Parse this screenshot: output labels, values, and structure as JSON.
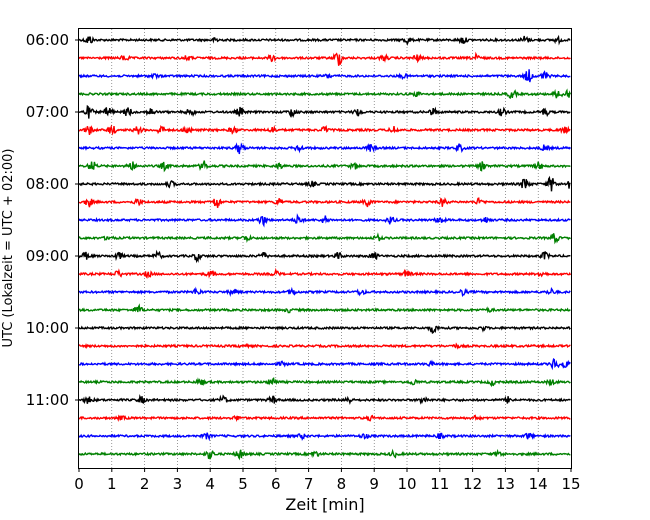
{
  "chart_data": {
    "type": "line",
    "subtype": "helicorder",
    "xlabel": "Zeit  [min]",
    "ylabel": "UTC (Lokalzeit = UTC + 02:00)",
    "xlim": [
      0,
      15
    ],
    "x_ticks": [
      0,
      1,
      2,
      3,
      4,
      5,
      6,
      7,
      8,
      9,
      10,
      11,
      12,
      13,
      14,
      15
    ],
    "x_tick_labels": [
      "0",
      "1",
      "2",
      "3",
      "4",
      "5",
      "6",
      "7",
      "8",
      "9",
      "10",
      "11",
      "12",
      "13",
      "14",
      "15"
    ],
    "y_tick_labels": [
      "06:00",
      "07:00",
      "08:00",
      "09:00",
      "10:00",
      "11:00"
    ],
    "trace_colors": [
      "#000000",
      "#ff0000",
      "#0000ff",
      "#008000"
    ],
    "traces_count": 24,
    "vertical_grid": true,
    "series": [
      {
        "bursts": [
          [
            0.3,
            1.0
          ],
          [
            4.2,
            0.5
          ],
          [
            10.0,
            0.8
          ],
          [
            11.7,
            0.8
          ],
          [
            13.6,
            0.9
          ],
          [
            14.6,
            0.5
          ]
        ]
      },
      {
        "bursts": [
          [
            1.4,
            0.6
          ],
          [
            3.3,
            0.5
          ],
          [
            5.9,
            0.7
          ],
          [
            7.9,
            1.8
          ],
          [
            9.3,
            0.6
          ],
          [
            10.3,
            0.7
          ],
          [
            12.1,
            0.7
          ]
        ]
      },
      {
        "bursts": [
          [
            2.3,
            0.4
          ],
          [
            7.6,
            0.4
          ],
          [
            9.9,
            0.4
          ],
          [
            13.7,
            1.4
          ],
          [
            14.2,
            0.9
          ]
        ]
      },
      {
        "bursts": [
          [
            10.3,
            0.4
          ],
          [
            13.2,
            1.0
          ],
          [
            14.6,
            0.9
          ],
          [
            14.9,
            0.9
          ]
        ]
      },
      {
        "bursts": [
          [
            0.3,
            1.3
          ],
          [
            0.9,
            1.2
          ],
          [
            1.5,
            1.0
          ],
          [
            2.2,
            0.8
          ],
          [
            3.4,
            0.8
          ],
          [
            4.9,
            0.9
          ],
          [
            6.5,
            0.9
          ],
          [
            8.5,
            0.8
          ],
          [
            10.8,
            0.8
          ],
          [
            12.9,
            0.8
          ],
          [
            14.2,
            0.8
          ]
        ]
      },
      {
        "bursts": [
          [
            0.3,
            1.0
          ],
          [
            1.0,
            1.0
          ],
          [
            1.8,
            0.8
          ],
          [
            2.5,
            0.9
          ],
          [
            3.3,
            0.8
          ],
          [
            4.7,
            0.7
          ],
          [
            5.9,
            0.6
          ],
          [
            7.5,
            0.7
          ],
          [
            9.6,
            0.8
          ],
          [
            14.8,
            0.6
          ]
        ]
      },
      {
        "bursts": [
          [
            4.9,
            1.2
          ],
          [
            6.7,
            0.7
          ],
          [
            8.9,
            0.8
          ],
          [
            11.6,
            0.8
          ],
          [
            14.2,
            0.6
          ]
        ]
      },
      {
        "bursts": [
          [
            0.4,
            1.1
          ],
          [
            1.6,
            1.0
          ],
          [
            2.6,
            0.8
          ],
          [
            3.8,
            1.1
          ],
          [
            6.1,
            0.6
          ],
          [
            8.4,
            0.6
          ],
          [
            12.3,
            0.9
          ],
          [
            14.0,
            0.8
          ]
        ]
      },
      {
        "bursts": [
          [
            2.8,
            0.6
          ],
          [
            7.1,
            0.5
          ],
          [
            13.6,
            1.4
          ],
          [
            14.4,
            1.6
          ],
          [
            14.95,
            1.1
          ]
        ]
      },
      {
        "bursts": [
          [
            0.3,
            1.0
          ],
          [
            1.8,
            0.7
          ],
          [
            4.2,
            1.4
          ],
          [
            6.1,
            0.8
          ],
          [
            8.8,
            0.9
          ],
          [
            11.1,
            0.9
          ],
          [
            12.2,
            0.7
          ]
        ]
      },
      {
        "bursts": [
          [
            5.6,
            1.1
          ],
          [
            6.7,
            1.0
          ],
          [
            7.5,
            0.8
          ],
          [
            9.5,
            0.8
          ],
          [
            11.0,
            0.8
          ],
          [
            12.4,
            0.6
          ]
        ]
      },
      {
        "bursts": [
          [
            0.9,
            0.5
          ],
          [
            5.1,
            0.6
          ],
          [
            9.1,
            0.6
          ],
          [
            14.5,
            1.0
          ]
        ]
      },
      {
        "bursts": [
          [
            0.2,
            0.7
          ],
          [
            1.2,
            0.8
          ],
          [
            2.4,
            0.8
          ],
          [
            3.6,
            0.9
          ],
          [
            5.6,
            0.8
          ],
          [
            7.9,
            0.7
          ],
          [
            9.0,
            0.7
          ],
          [
            14.2,
            0.8
          ]
        ]
      },
      {
        "bursts": [
          [
            1.2,
            0.7
          ],
          [
            2.1,
            0.6
          ],
          [
            4.0,
            0.6
          ],
          [
            6.0,
            0.6
          ],
          [
            10.0,
            0.7
          ],
          [
            14.1,
            0.6
          ]
        ]
      },
      {
        "bursts": [
          [
            3.6,
            0.7
          ],
          [
            4.7,
            0.6
          ],
          [
            6.5,
            0.6
          ],
          [
            8.6,
            0.6
          ],
          [
            11.7,
            0.6
          ],
          [
            14.4,
            0.6
          ]
        ]
      },
      {
        "bursts": [
          [
            1.8,
            1.0
          ],
          [
            6.4,
            0.4
          ],
          [
            12.5,
            0.3
          ]
        ]
      },
      {
        "bursts": [
          [
            10.8,
            1.0
          ],
          [
            12.3,
            0.4
          ]
        ]
      },
      {
        "bursts": [
          [
            5.0,
            0.3
          ],
          [
            11.5,
            0.3
          ]
        ]
      },
      {
        "bursts": [
          [
            6.2,
            0.4
          ],
          [
            10.7,
            0.4
          ],
          [
            14.5,
            1.2
          ],
          [
            14.8,
            0.8
          ]
        ]
      },
      {
        "bursts": [
          [
            5.9,
            1.0
          ],
          [
            3.7,
            0.6
          ],
          [
            10.2,
            0.6
          ],
          [
            12.6,
            0.6
          ],
          [
            14.4,
            0.6
          ]
        ]
      },
      {
        "bursts": [
          [
            0.3,
            0.8
          ],
          [
            1.9,
            0.7
          ],
          [
            4.4,
            0.8
          ],
          [
            5.9,
            0.8
          ],
          [
            8.2,
            0.7
          ],
          [
            10.5,
            0.7
          ],
          [
            13.1,
            0.7
          ]
        ]
      },
      {
        "bursts": [
          [
            1.3,
            0.4
          ],
          [
            4.8,
            0.4
          ],
          [
            8.9,
            0.4
          ],
          [
            12.1,
            0.4
          ]
        ]
      },
      {
        "bursts": [
          [
            3.9,
            0.6
          ],
          [
            6.8,
            0.5
          ],
          [
            8.7,
            0.5
          ],
          [
            11.0,
            0.5
          ],
          [
            13.7,
            0.6
          ]
        ]
      },
      {
        "bursts": [
          [
            4.0,
            1.0
          ],
          [
            4.9,
            1.0
          ],
          [
            7.2,
            0.6
          ],
          [
            9.6,
            0.6
          ],
          [
            12.8,
            0.6
          ]
        ]
      }
    ]
  }
}
